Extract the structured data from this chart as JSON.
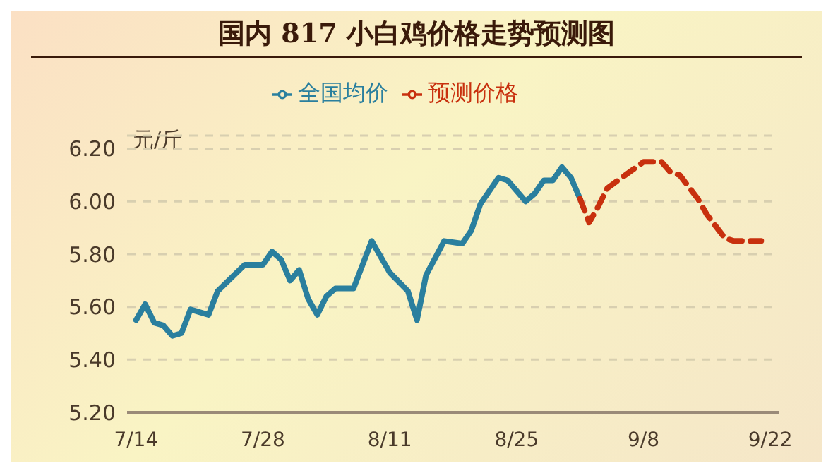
{
  "chart_data": {
    "type": "line",
    "title": "国内 817 小白鸡价格走势预测图",
    "ylabel": "元/斤",
    "series": [
      {
        "name": "全国均价",
        "color": "#2a7f9e",
        "line_style": "solid",
        "x": [
          "--07-14",
          "--07-15",
          "--07-16",
          "--07-17",
          "--07-18",
          "--07-19",
          "--07-20",
          "--07-22",
          "--07-23",
          "--07-26",
          "--07-28",
          "--07-29",
          "--07-30",
          "--07-31",
          "--08-01",
          "--08-02",
          "--08-03",
          "--08-04",
          "--08-05",
          "--08-07",
          "--08-09",
          "--08-11",
          "--08-13",
          "--08-14",
          "--08-15",
          "--08-17",
          "--08-19",
          "--08-20",
          "--08-21",
          "--08-23",
          "--08-24",
          "--08-26",
          "--08-27",
          "--08-28",
          "--08-29",
          "--08-30",
          "--08-31",
          "--09-01"
        ],
        "values": [
          5.55,
          5.61,
          5.54,
          5.53,
          5.49,
          5.5,
          5.59,
          5.57,
          5.66,
          5.76,
          5.76,
          5.81,
          5.78,
          5.7,
          5.74,
          5.63,
          5.57,
          5.64,
          5.67,
          5.67,
          5.85,
          5.73,
          5.66,
          5.55,
          5.72,
          5.85,
          5.84,
          5.89,
          5.99,
          6.09,
          6.08,
          6.0,
          6.03,
          6.08,
          6.08,
          6.13,
          6.09,
          6.01
        ]
      },
      {
        "name": "预测价格",
        "color": "#c8300e",
        "line_style": "dashed",
        "x": [
          "--09-01",
          "--09-02",
          "--09-03",
          "--09-04",
          "--09-06",
          "--09-08",
          "--09-10",
          "--09-11",
          "--09-12",
          "--09-14",
          "--09-15",
          "--09-17",
          "--09-18",
          "--09-21"
        ],
        "values": [
          6.01,
          5.92,
          5.98,
          6.05,
          6.1,
          6.15,
          6.15,
          6.11,
          6.1,
          6.01,
          5.95,
          5.86,
          5.85,
          5.85
        ]
      }
    ],
    "xlim": [
      "--07-13",
      "--09-23"
    ],
    "xticks": [
      {
        "value": "--07-14",
        "label": "7/14"
      },
      {
        "value": "--07-28",
        "label": "7/28"
      },
      {
        "value": "--08-11",
        "label": "8/11"
      },
      {
        "value": "--08-25",
        "label": "8/25"
      },
      {
        "value": "--09-08",
        "label": "9/8"
      },
      {
        "value": "--09-22",
        "label": "9/22"
      }
    ],
    "ylim": [
      5.2,
      6.25
    ],
    "yticks": [
      {
        "value": 5.2,
        "label": "5.20"
      },
      {
        "value": 5.4,
        "label": "5.40"
      },
      {
        "value": 5.6,
        "label": "5.60"
      },
      {
        "value": 5.8,
        "label": "5.80"
      },
      {
        "value": 6.0,
        "label": "6.00"
      },
      {
        "value": 6.2,
        "label": "6.20"
      }
    ],
    "grid": "y",
    "legend": "top",
    "marker": "none"
  }
}
